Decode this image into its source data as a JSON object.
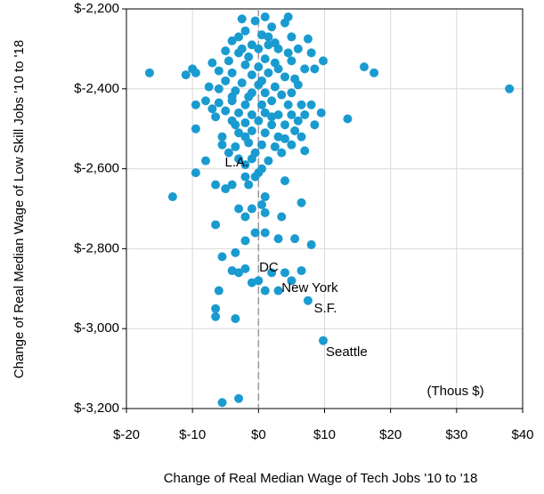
{
  "chart_data": {
    "type": "scatter",
    "x_label": "Change of Real Median Wage of Tech Jobs '10 to '18",
    "y_label": "Change of Real Median Wage of Low Skill Jobs '10 to '18",
    "color": "#1a9bd0",
    "grid": true,
    "reference_line": {
      "x": 0
    },
    "xlim": [
      -20,
      40
    ],
    "ylim": [
      -3200,
      -2200
    ],
    "xticks": [
      {
        "value": -20,
        "label": "$-20"
      },
      {
        "value": -10,
        "label": "$-10"
      },
      {
        "value": 0,
        "label": "$0"
      },
      {
        "value": 10,
        "label": "$10"
      },
      {
        "value": 20,
        "label": "$20"
      },
      {
        "value": 30,
        "label": "$30"
      },
      {
        "value": 40,
        "label": "$40"
      }
    ],
    "yticks": [
      {
        "value": -3200,
        "label": "$-3,200"
      },
      {
        "value": -3000,
        "label": "$-3,000"
      },
      {
        "value": -2800,
        "label": "$-2,800"
      },
      {
        "value": -2600,
        "label": "$-2,600"
      },
      {
        "value": -2400,
        "label": "$-2,400"
      },
      {
        "value": -2200,
        "label": "$-2,200"
      }
    ],
    "annotations": [
      {
        "text": "L.A.",
        "x": -5.1,
        "y": -2585
      },
      {
        "text": "DC",
        "x": 0.1,
        "y": -2848
      },
      {
        "text": "New York",
        "x": 3.5,
        "y": -2899
      },
      {
        "text": "S.F.",
        "x": 8.4,
        "y": -2951
      },
      {
        "text": "Seattle",
        "x": 10.2,
        "y": -3060
      },
      {
        "text": "(Thous $)",
        "x": 25.5,
        "y": -3158
      }
    ],
    "x": [
      38,
      -16.5,
      -13,
      16,
      17.5,
      13.5,
      9.8,
      -5.5,
      -3,
      -6.5,
      -6.5,
      -6,
      -3.5,
      -9.5,
      -9.5,
      -6.5,
      -6.5,
      -5.5,
      -4,
      -3,
      -2,
      -1,
      0,
      1,
      3,
      5,
      7.5,
      9.8,
      6.5,
      4,
      2,
      8,
      5.5,
      3,
      1,
      -0.5,
      -2,
      -3.5,
      -2,
      -3,
      -1,
      1,
      3.5,
      0.5,
      1,
      6.5,
      -1.5,
      -0.5,
      -5,
      -4,
      -2,
      4,
      0,
      0.5,
      -8,
      -3,
      1.5,
      3.5,
      5,
      7,
      1,
      4.5,
      -2.5,
      4,
      0.5,
      1.5,
      -2,
      -3,
      5,
      2.5,
      7.5,
      -4,
      -1,
      0,
      3,
      4.5,
      6,
      8,
      -5,
      -3,
      -1.5,
      1,
      2.5,
      5,
      -4.5,
      -7,
      -2,
      0,
      7,
      8.5,
      -10,
      -11,
      -9.5,
      -6,
      -4,
      -1,
      1.5,
      4,
      5.5,
      -5,
      -2.5,
      0,
      2.5,
      6,
      -3.5,
      -1,
      1,
      3.5,
      -7.5,
      -8,
      -9.5,
      -6,
      -4,
      -2,
      0.5,
      2,
      4.5,
      6.5,
      8,
      -5,
      -3,
      -1,
      1,
      3,
      5,
      9.5,
      -6.5,
      -4,
      -2,
      0,
      2,
      4,
      6,
      8.5,
      -5.5,
      -3,
      -1,
      1,
      3,
      5.5,
      -5.5,
      -3.5,
      -1.5,
      0.5,
      2.5,
      -4.5,
      -0.5,
      7,
      -7,
      -2.5,
      2,
      -0.5,
      3,
      -6,
      5,
      -1.5,
      0.5,
      2,
      -3.5,
      4,
      -2,
      1.5,
      -4,
      6.5,
      -1,
      -2
    ],
    "values": [
      -2400,
      -2360,
      -2670,
      -2345,
      -2360,
      -2475,
      -2330,
      -3185,
      -3175,
      -2970,
      -2950,
      -2905,
      -2975,
      -2500,
      -2610,
      -2740,
      -2640,
      -2820,
      -2855,
      -2860,
      -2850,
      -2885,
      -2880,
      -2905,
      -2905,
      -2880,
      -2930,
      -3030,
      -2855,
      -2860,
      -2860,
      -2790,
      -2775,
      -2775,
      -2760,
      -2760,
      -2780,
      -2810,
      -2720,
      -2700,
      -2700,
      -2710,
      -2720,
      -2690,
      -2670,
      -2685,
      -2640,
      -2620,
      -2650,
      -2640,
      -2620,
      -2630,
      -2610,
      -2600,
      -2580,
      -2575,
      -2580,
      -2560,
      -2540,
      -2555,
      -2220,
      -2220,
      -2225,
      -2235,
      -2265,
      -2270,
      -2255,
      -2270,
      -2270,
      -2285,
      -2275,
      -2280,
      -2290,
      -2300,
      -2300,
      -2310,
      -2300,
      -2310,
      -2305,
      -2310,
      -2320,
      -2325,
      -2335,
      -2330,
      -2330,
      -2335,
      -2340,
      -2345,
      -2350,
      -2350,
      -2350,
      -2365,
      -2360,
      -2355,
      -2360,
      -2365,
      -2360,
      -2370,
      -2375,
      -2380,
      -2385,
      -2390,
      -2395,
      -2390,
      -2405,
      -2410,
      -2410,
      -2415,
      -2395,
      -2430,
      -2440,
      -2435,
      -2430,
      -2440,
      -2440,
      -2430,
      -2440,
      -2440,
      -2440,
      -2455,
      -2460,
      -2465,
      -2460,
      -2465,
      -2465,
      -2460,
      -2470,
      -2480,
      -2485,
      -2480,
      -2490,
      -2490,
      -2480,
      -2490,
      -2520,
      -2510,
      -2505,
      -2510,
      -2520,
      -2505,
      -2540,
      -2545,
      -2535,
      -2540,
      -2545,
      -2560,
      -2560,
      -2465,
      -2450,
      -2300,
      -2245,
      -2230,
      -2350,
      -2400,
      -2410,
      -2420,
      -2380,
      -2470,
      -2490,
      -2525,
      -2520,
      -2290,
      -2420,
      -2520,
      -2575,
      -2590
    ]
  }
}
